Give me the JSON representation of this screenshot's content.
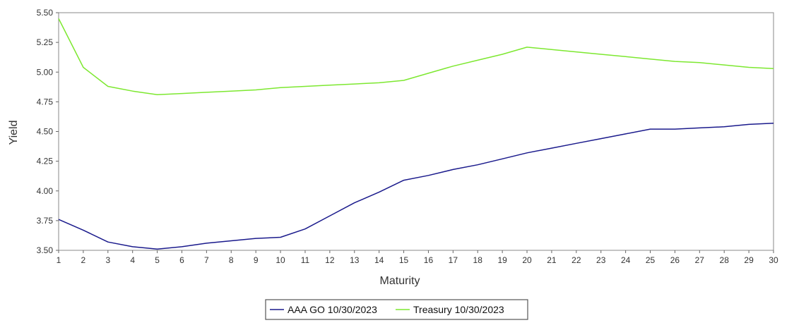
{
  "chart_data": {
    "type": "line",
    "title": "",
    "xlabel": "Maturity",
    "ylabel": "Yield",
    "x": [
      1,
      2,
      3,
      4,
      5,
      6,
      7,
      8,
      9,
      10,
      11,
      12,
      13,
      14,
      15,
      16,
      17,
      18,
      19,
      20,
      21,
      22,
      23,
      24,
      25,
      26,
      27,
      28,
      29,
      30
    ],
    "x_ticks": [
      "1",
      "2",
      "3",
      "4",
      "5",
      "6",
      "7",
      "8",
      "9",
      "10",
      "11",
      "12",
      "13",
      "14",
      "15",
      "16",
      "17",
      "18",
      "19",
      "20",
      "21",
      "22",
      "23",
      "24",
      "25",
      "26",
      "27",
      "28",
      "29",
      "30"
    ],
    "ylim": [
      3.5,
      5.5
    ],
    "y_ticks": [
      "3.50",
      "3.75",
      "4.00",
      "4.25",
      "4.50",
      "4.75",
      "5.00",
      "5.25",
      "5.50"
    ],
    "grid": false,
    "legend_position": "bottom-center",
    "series": [
      {
        "name": "AAA GO 10/30/2023",
        "color": "#1a1a8c",
        "values": [
          3.76,
          3.67,
          3.57,
          3.53,
          3.51,
          3.53,
          3.56,
          3.58,
          3.6,
          3.61,
          3.68,
          3.79,
          3.9,
          3.99,
          4.09,
          4.13,
          4.18,
          4.22,
          4.27,
          4.32,
          4.36,
          4.4,
          4.44,
          4.48,
          4.52,
          4.52,
          4.53,
          4.54,
          4.56,
          4.57
        ]
      },
      {
        "name": "Treasury 10/30/2023",
        "color": "#7de830",
        "values": [
          5.45,
          5.04,
          4.88,
          4.84,
          4.81,
          4.82,
          4.83,
          4.84,
          4.85,
          4.87,
          4.88,
          4.89,
          4.9,
          4.91,
          4.93,
          4.99,
          5.05,
          5.1,
          5.15,
          5.21,
          5.19,
          5.17,
          5.15,
          5.13,
          5.11,
          5.09,
          5.08,
          5.06,
          5.04,
          5.03
        ]
      }
    ]
  }
}
